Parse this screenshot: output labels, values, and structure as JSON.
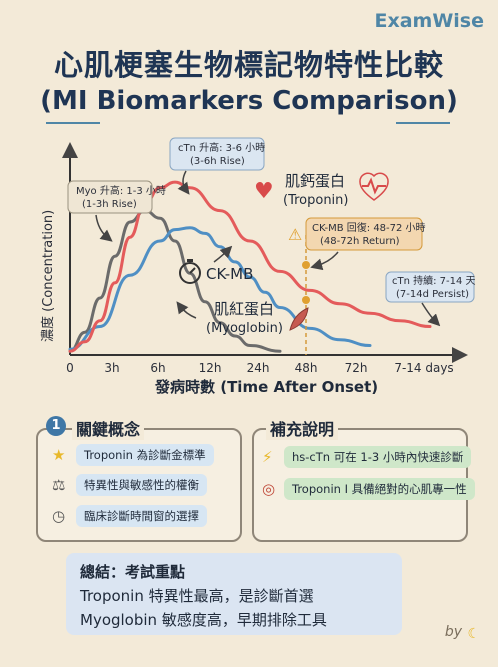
{
  "brand": "ExamWise",
  "title_zh": "心肌梗塞生物標記物特性比較",
  "title_en": "(MI Biomarkers Comparison)",
  "chart_data": {
    "type": "line",
    "xlabel": "發病時數 (Time After Onset)",
    "ylabel": "濃度 (Concentration)",
    "x_ticks": [
      "0",
      "3h",
      "6h",
      "12h",
      "24h",
      "48h",
      "72h",
      "7-14 days"
    ],
    "series": [
      {
        "name": "肌紅蛋白 (Myoglobin)",
        "color": "#6b6b6b",
        "points": [
          [
            0,
            0.02
          ],
          [
            0.5,
            0.12
          ],
          [
            1,
            0.3
          ],
          [
            1.5,
            0.52
          ],
          [
            2,
            0.7
          ],
          [
            2.5,
            0.76
          ],
          [
            3,
            0.72
          ],
          [
            3.5,
            0.6
          ],
          [
            4,
            0.43
          ],
          [
            4.5,
            0.28
          ],
          [
            5,
            0.17
          ],
          [
            5.5,
            0.1
          ],
          [
            6,
            0.05
          ],
          [
            7,
            0.02
          ]
        ]
      },
      {
        "name": "CK-MB",
        "color": "#4f8fc4",
        "points": [
          [
            0,
            0.03
          ],
          [
            1,
            0.15
          ],
          [
            2,
            0.42
          ],
          [
            3,
            0.6
          ],
          [
            3.5,
            0.66
          ],
          [
            4,
            0.67
          ],
          [
            4.5,
            0.64
          ],
          [
            5,
            0.57
          ],
          [
            5.5,
            0.49
          ],
          [
            6,
            0.41
          ],
          [
            6.5,
            0.33
          ],
          [
            7,
            0.25
          ],
          [
            8,
            0.14
          ],
          [
            9,
            0.08
          ],
          [
            10,
            0.05
          ]
        ]
      },
      {
        "name": "肌鈣蛋白 (Troponin)",
        "color": "#e45b5b",
        "points": [
          [
            0,
            0.02
          ],
          [
            0.5,
            0.07
          ],
          [
            1,
            0.18
          ],
          [
            1.5,
            0.38
          ],
          [
            2,
            0.62
          ],
          [
            2.5,
            0.8
          ],
          [
            3,
            0.88
          ],
          [
            3.5,
            0.91
          ],
          [
            4,
            0.88
          ],
          [
            5,
            0.76
          ],
          [
            6,
            0.6
          ],
          [
            7,
            0.44
          ],
          [
            8,
            0.34
          ],
          [
            9,
            0.27
          ],
          [
            10,
            0.22
          ],
          [
            11,
            0.18
          ],
          [
            12,
            0.15
          ]
        ]
      }
    ],
    "annotations": [
      {
        "text": "Myo 升高: 1-3 小時 (1-3h Rise)"
      },
      {
        "text": "cTn 升高: 3-6 小時 (3-6h Rise)"
      },
      {
        "text": "CK-MB 回復: 48-72 小時 (48-72h Return)"
      },
      {
        "text": "cTn 持續: 7-14 天 (7-14d Persist)"
      }
    ]
  },
  "labels": {
    "myo_rise_line1": "Myo 升高: 1-3 小時",
    "myo_rise_line2": "(1-3h Rise)",
    "ctn_rise_line1": "cTn 升高: 3-6 小時",
    "ctn_rise_line2": "(3-6h Rise)",
    "ckmb_return_line1": "CK-MB 回復: 48-72 小時",
    "ckmb_return_line2": "(48-72h Return)",
    "ctn_persist_line1": "cTn 持續: 7-14 天",
    "ctn_persist_line2": "(7-14d Persist)",
    "troponin_name1": "肌鈣蛋白",
    "troponin_name2": "(Troponin)",
    "ckmb_name": "CK-MB",
    "myo_name1": "肌紅蛋白",
    "myo_name2": "(Myoglobin)"
  },
  "key_concepts": {
    "number": "1",
    "title": "關鍵概念",
    "items": [
      {
        "icon": "star-icon",
        "text": "Troponin 為診斷金標準"
      },
      {
        "icon": "scale-icon",
        "text": "特異性與敏感性的權衡"
      },
      {
        "icon": "clock-icon",
        "text": "臨床診斷時間窗的選擇"
      }
    ]
  },
  "supplement": {
    "title": "補充說明",
    "items": [
      {
        "icon": "lightning-icon",
        "text": "hs-cTn 可在 1-3 小時內快速診斷"
      },
      {
        "icon": "target-icon",
        "text": "Troponin I 具備絕對的心肌專一性"
      }
    ]
  },
  "summary": {
    "title": "總結：考試重點",
    "line1": "Troponin 特異性最高，是診斷首選",
    "line2": "Myoglobin 敏感度高，早期排除工具"
  },
  "byline": "by"
}
